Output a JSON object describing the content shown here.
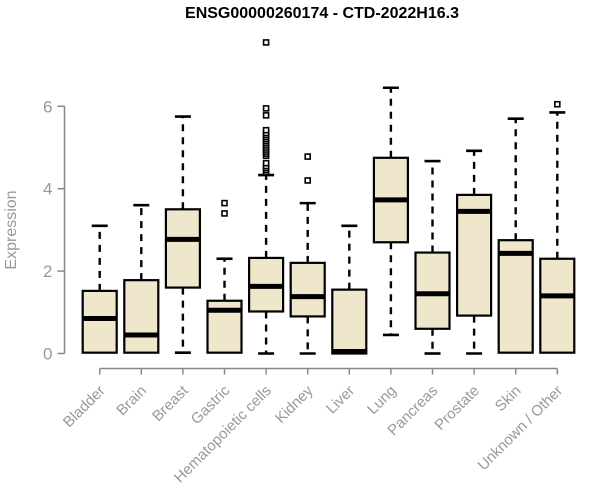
{
  "chart_data": {
    "type": "boxplot",
    "title": "ENSG00000260174 - CTD-2022H16.3",
    "ylabel": "Expression",
    "xlabel": "",
    "ylim": [
      0,
      6.6
    ],
    "yticks": [
      0,
      2,
      4,
      6
    ],
    "grid": false,
    "legend": "none",
    "categories": [
      "Bladder",
      "Brain",
      "Breast",
      "Gastric",
      "Hematopoietic cells",
      "Kidney",
      "Liver",
      "Lung",
      "Pancreas",
      "Prostate",
      "Skin",
      "Unknown / Other"
    ],
    "series": [
      {
        "category": "Bladder",
        "whisker_low": 0,
        "q1": 0.02,
        "median": 0.85,
        "q3": 1.52,
        "whisker_high": 3.1,
        "outliers": []
      },
      {
        "category": "Brain",
        "whisker_low": 0,
        "q1": 0.02,
        "median": 0.45,
        "q3": 1.78,
        "whisker_high": 3.6,
        "outliers": []
      },
      {
        "category": "Breast",
        "whisker_low": 0.02,
        "q1": 1.6,
        "median": 2.77,
        "q3": 3.5,
        "whisker_high": 5.75,
        "outliers": []
      },
      {
        "category": "Gastric",
        "whisker_low": 0,
        "q1": 0.02,
        "median": 1.05,
        "q3": 1.28,
        "whisker_high": 2.3,
        "outliers": [
          3.4,
          3.65
        ]
      },
      {
        "category": "Hematopoietic cells",
        "whisker_low": 0,
        "q1": 1.02,
        "median": 1.63,
        "q3": 2.32,
        "whisker_high": 4.33,
        "outliers": [
          4.4,
          4.45,
          4.5,
          4.55,
          4.62,
          4.8,
          4.85,
          4.9,
          4.95,
          5.0,
          5.05,
          5.1,
          5.15,
          5.2,
          5.25,
          5.3,
          5.35,
          5.42,
          5.78,
          5.95,
          7.55
        ]
      },
      {
        "category": "Kidney",
        "whisker_low": 0,
        "q1": 0.9,
        "median": 1.38,
        "q3": 2.2,
        "whisker_high": 3.65,
        "outliers": [
          4.2,
          4.78
        ]
      },
      {
        "category": "Liver",
        "whisker_low": 0,
        "q1": 0,
        "median": 0.05,
        "q3": 1.55,
        "whisker_high": 3.1,
        "outliers": []
      },
      {
        "category": "Lung",
        "whisker_low": 0.45,
        "q1": 2.7,
        "median": 3.73,
        "q3": 4.75,
        "whisker_high": 6.45,
        "outliers": []
      },
      {
        "category": "Pancreas",
        "whisker_low": 0,
        "q1": 0.6,
        "median": 1.45,
        "q3": 2.45,
        "whisker_high": 4.67,
        "outliers": []
      },
      {
        "category": "Prostate",
        "whisker_low": 0,
        "q1": 0.92,
        "median": 3.45,
        "q3": 3.85,
        "whisker_high": 4.92,
        "outliers": []
      },
      {
        "category": "Skin",
        "whisker_low": 0,
        "q1": 0.02,
        "median": 2.43,
        "q3": 2.75,
        "whisker_high": 5.7,
        "outliers": []
      },
      {
        "category": "Unknown / Other",
        "whisker_low": 0,
        "q1": 0.02,
        "median": 1.4,
        "q3": 2.3,
        "whisker_high": 5.85,
        "outliers": [
          6.05
        ]
      }
    ],
    "colors": {
      "box_fill": "#EEE7CC",
      "box_border": "#000000",
      "median": "#000000",
      "whisker": "#000000",
      "outlier": "#000000",
      "axis_line": "#888888",
      "axis_text": "#999999",
      "title_text": "#000000"
    }
  }
}
